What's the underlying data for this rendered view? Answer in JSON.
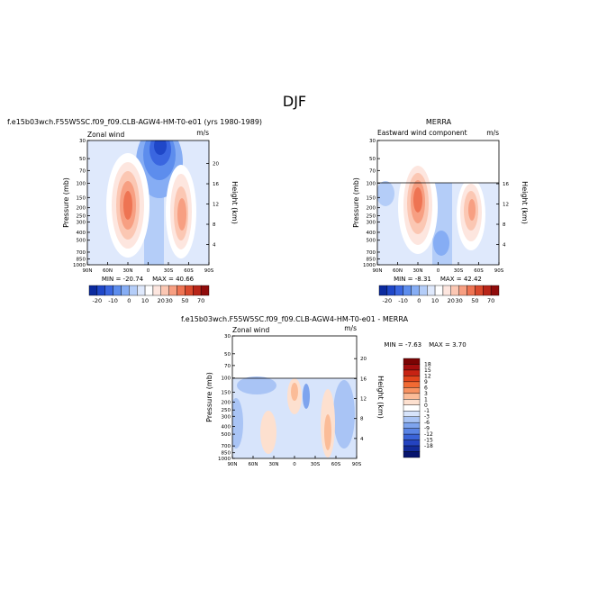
{
  "figure": {
    "season": "DJF",
    "top_left_title": "f.e15b03wch.F55W5SC.f09_f09.CLB-AGW4-HM-T0-e01 (yrs 1980-1989)",
    "top_right_title": "MERRA",
    "bottom_title": "f.e15b03wch.F55W5SC.f09_f09.CLB-AGW4-HM-T0-e01 - MERRA"
  },
  "chart_data": [
    {
      "type": "contour",
      "panel": "model",
      "left_label": "Zonal wind",
      "units": "m/s",
      "ylabel": "Pressure (mb)",
      "ylabel_right": "Height (km)",
      "x_ticks": [
        "90N",
        "60N",
        "30N",
        "0",
        "30S",
        "60S",
        "90S"
      ],
      "y_ticks": [
        "30",
        "50",
        "70",
        "100",
        "150",
        "200",
        "250",
        "300",
        "400",
        "500",
        "700",
        "850",
        "1000"
      ],
      "height_ticks": [
        "20",
        "16",
        "12",
        "8",
        "4"
      ],
      "min_label": "MIN = -20.74",
      "max_label": "MAX = 40.66",
      "colorbar_labels": [
        "-20",
        "-10",
        "0",
        "10",
        "20",
        "30",
        "50",
        "70"
      ],
      "jets": [
        {
          "lat": 25,
          "p_core": 200,
          "max": 40.66
        },
        {
          "lat": -45,
          "p_core": 250,
          "max": 30
        },
        {
          "lat": -5,
          "p_core": 30,
          "min": -20.74
        }
      ]
    },
    {
      "type": "contour",
      "panel": "obs",
      "left_label": "Eastward wind component",
      "units": "m/s",
      "ylabel": "Pressure (mb)",
      "ylabel_right": "Height (km)",
      "x_ticks": [
        "90N",
        "60N",
        "30N",
        "0",
        "30S",
        "60S",
        "90S"
      ],
      "y_ticks": [
        "30",
        "50",
        "70",
        "100",
        "150",
        "200",
        "250",
        "300",
        "400",
        "500",
        "700",
        "850",
        "1000"
      ],
      "height_ticks": [
        "16",
        "12",
        "8",
        "4"
      ],
      "min_label": "MIN = -8.31",
      "max_label": "MAX = 42.42",
      "colorbar_labels": [
        "-20",
        "-10",
        "0",
        "10",
        "20",
        "30",
        "50",
        "70"
      ],
      "data_top_mb": 100
    },
    {
      "type": "contour",
      "panel": "difference",
      "left_label": "Zonal wind",
      "units": "m/s",
      "ylabel": "Pressure (mb)",
      "ylabel_right": "Height (km)",
      "x_ticks": [
        "90N",
        "60N",
        "30N",
        "0",
        "30S",
        "60S",
        "90S"
      ],
      "y_ticks": [
        "30",
        "50",
        "70",
        "100",
        "150",
        "200",
        "250",
        "300",
        "400",
        "500",
        "700",
        "850",
        "1000"
      ],
      "height_ticks": [
        "20",
        "16",
        "12",
        "8",
        "4"
      ],
      "min_label": "MIN = -7.63",
      "max_label": "MAX = 3.70",
      "colorbar_labels": [
        "18",
        "15",
        "12",
        "9",
        "6",
        "3",
        "1",
        "0",
        "-1",
        "-3",
        "-6",
        "-9",
        "-12",
        "-15",
        "-18"
      ],
      "data_top_mb": 100
    }
  ],
  "palettes": {
    "wind": [
      "#0b2a9e",
      "#1f47c8",
      "#3a66e0",
      "#5d8ded",
      "#86adf4",
      "#b4cdf8",
      "#dfe9fc",
      "#ffffff",
      "#fde6df",
      "#fbc7b3",
      "#f79f82",
      "#ee7453",
      "#d94a2e",
      "#b82519",
      "#8f0b0b"
    ],
    "diff": [
      "#7b0303",
      "#a30d0d",
      "#c72313",
      "#e2451c",
      "#f16a33",
      "#f79261",
      "#fbbc98",
      "#fde0cf",
      "#ffffff",
      "#d7e4fb",
      "#a9c4f5",
      "#7ea4ee",
      "#5a84e5",
      "#3a63d8",
      "#2443c0",
      "#132b9a",
      "#07146e"
    ]
  }
}
